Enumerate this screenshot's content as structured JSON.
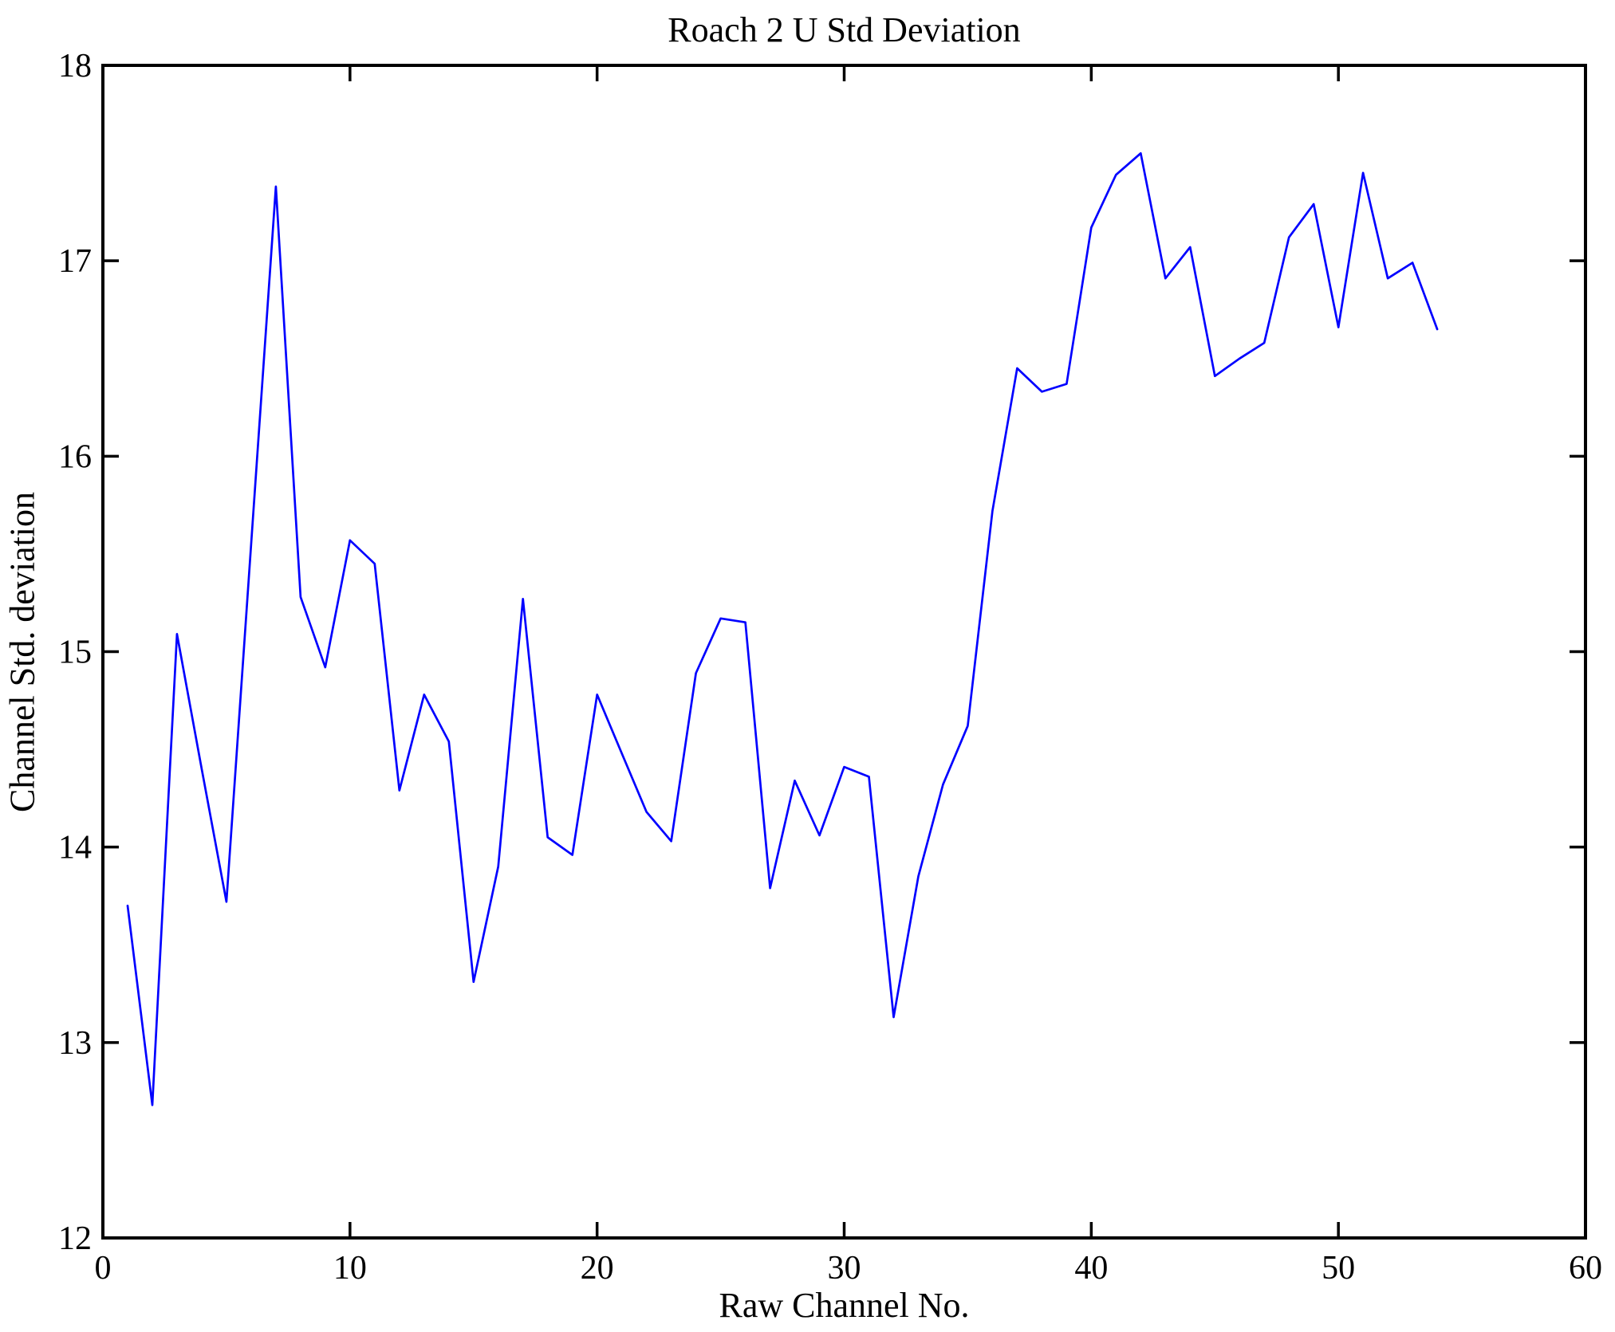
{
  "chart_data": {
    "type": "line",
    "title": "Roach 2 U Std Deviation",
    "xlabel": "Raw Channel No.",
    "ylabel": "Channel Std. deviation",
    "xlim": [
      0,
      60
    ],
    "ylim": [
      12,
      18
    ],
    "xticks": [
      0,
      10,
      20,
      30,
      40,
      50,
      60
    ],
    "yticks": [
      12,
      13,
      14,
      15,
      16,
      17,
      18
    ],
    "grid": false,
    "legend": null,
    "line_color": "#0000ff",
    "axis_color": "#000000",
    "x": [
      1,
      2,
      3,
      4,
      5,
      6,
      7,
      8,
      9,
      10,
      11,
      12,
      13,
      14,
      15,
      16,
      17,
      18,
      19,
      20,
      21,
      22,
      23,
      24,
      25,
      26,
      27,
      28,
      29,
      30,
      31,
      32,
      33,
      34,
      35,
      36,
      37,
      38,
      39,
      40,
      41,
      42,
      43,
      44,
      45,
      46,
      47,
      48,
      49,
      50,
      51,
      52,
      53,
      54
    ],
    "y": [
      13.7,
      12.68,
      15.09,
      14.4,
      13.72,
      15.55,
      17.38,
      15.28,
      14.92,
      15.57,
      15.45,
      14.29,
      14.78,
      14.54,
      13.31,
      13.9,
      15.27,
      14.05,
      13.96,
      14.78,
      14.48,
      14.18,
      14.03,
      14.89,
      15.17,
      15.15,
      13.79,
      14.34,
      14.06,
      14.41,
      14.36,
      13.13,
      13.85,
      14.32,
      14.62,
      15.72,
      16.45,
      16.33,
      16.37,
      17.17,
      17.44,
      17.55,
      16.91,
      17.07,
      16.41,
      16.5,
      16.58,
      17.12,
      17.29,
      16.66,
      17.45,
      16.91,
      16.99,
      16.65
    ]
  }
}
